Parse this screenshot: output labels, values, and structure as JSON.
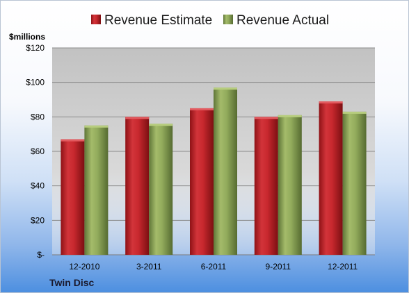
{
  "chart_data": {
    "type": "bar",
    "ylabel": "$millions",
    "categories": [
      "12-2010",
      "3-2011",
      "6-2011",
      "9-2011",
      "12-2011"
    ],
    "series": [
      {
        "name": "Revenue Estimate",
        "values": [
          67,
          80,
          85,
          80,
          89
        ],
        "color": "#c0262c"
      },
      {
        "name": "Revenue Actual",
        "values": [
          75,
          76,
          97,
          81,
          83
        ],
        "color": "#8ca555"
      }
    ],
    "yticks": [
      {
        "value": 0,
        "label": "$-"
      },
      {
        "value": 20,
        "label": "$20"
      },
      {
        "value": 40,
        "label": "$40"
      },
      {
        "value": 60,
        "label": "$60"
      },
      {
        "value": 80,
        "label": "$80"
      },
      {
        "value": 100,
        "label": "$100"
      },
      {
        "value": 120,
        "label": "$120"
      }
    ],
    "ylim": [
      0,
      120
    ],
    "grid": true,
    "legend": "top"
  },
  "footer": {
    "company": "Twin Disc"
  }
}
